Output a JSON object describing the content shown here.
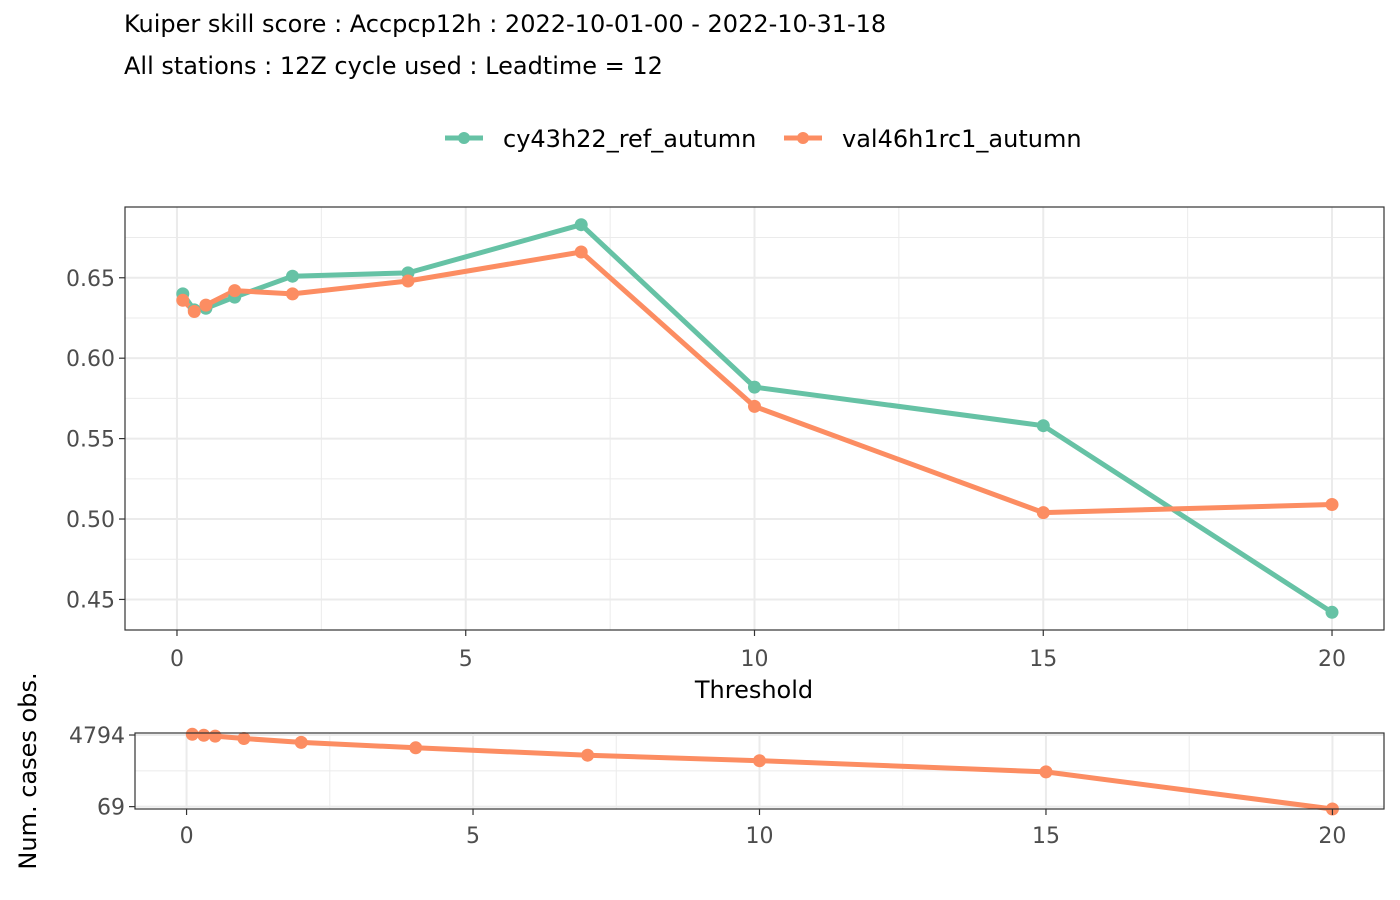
{
  "title": "Kuiper skill score : Accpcp12h : 2022-10-01-00 - 2022-10-31-18",
  "subtitle": "All stations : 12Z cycle used : Leadtime = 12",
  "colors": {
    "series1": "#66c2a5",
    "series2": "#fc8d62",
    "grid": "#ebebeb",
    "panel_border": "#333333",
    "tick_text": "#4d4d4d"
  },
  "chart_data": [
    {
      "type": "line",
      "legend_position": "top",
      "grid": true,
      "xlabel": "Threshold",
      "ylabel": "",
      "xlim": [
        -0.9,
        20.9
      ],
      "ylim": [
        0.431,
        0.694
      ],
      "x_ticks": [
        0,
        5,
        10,
        15,
        20
      ],
      "x_tick_labels": [
        "0",
        "5",
        "10",
        "15",
        "20"
      ],
      "y_ticks": [
        0.45,
        0.5,
        0.55,
        0.6,
        0.65
      ],
      "y_tick_labels": [
        "0.45",
        "0.50",
        "0.55",
        "0.60",
        "0.65"
      ],
      "series": [
        {
          "name": "cy43h22_ref_autumn",
          "x": [
            0.1,
            0.3,
            0.5,
            1,
            2,
            4,
            7,
            10,
            15,
            20
          ],
          "y": [
            0.64,
            0.63,
            0.631,
            0.638,
            0.651,
            0.653,
            0.683,
            0.582,
            0.558,
            0.442
          ]
        },
        {
          "name": "val46h1rc1_autumn",
          "x": [
            0.1,
            0.3,
            0.5,
            1,
            2,
            4,
            7,
            10,
            15,
            20
          ],
          "y": [
            0.636,
            0.629,
            0.633,
            0.642,
            0.64,
            0.648,
            0.666,
            0.57,
            0.504,
            0.509
          ]
        }
      ]
    },
    {
      "type": "line",
      "grid": true,
      "xlabel": "",
      "ylabel": "Num. cases obs.",
      "xlim": [
        -0.9,
        20.9
      ],
      "ylim": [
        60,
        5400
      ],
      "y_scale": "log",
      "x_ticks": [
        0,
        5,
        10,
        15,
        20
      ],
      "x_tick_labels": [
        "0",
        "5",
        "10",
        "15",
        "20"
      ],
      "y_ticks": [
        69,
        4794
      ],
      "y_tick_labels": [
        "69",
        "4794"
      ],
      "series": [
        {
          "name": "",
          "x": [
            0.1,
            0.3,
            0.5,
            1,
            2,
            4,
            7,
            10,
            15,
            20
          ],
          "y": [
            5000,
            4700,
            4500,
            3900,
            3100,
            2250,
            1450,
            1050,
            540,
            60
          ]
        }
      ]
    }
  ]
}
